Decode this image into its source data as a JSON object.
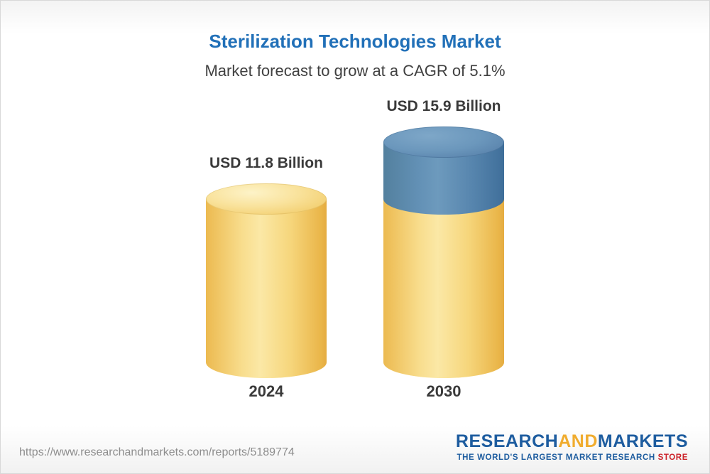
{
  "header": {
    "title": "Sterilization Technologies Market",
    "subtitle": "Market forecast to grow at a CAGR of 5.1%"
  },
  "chart_data": {
    "type": "bar",
    "variant": "3d-cylinder",
    "title": "Sterilization Technologies Market",
    "subtitle": "Market forecast to grow at a CAGR of 5.1%",
    "cagr_percent": 5.1,
    "categories": [
      "2024",
      "2030"
    ],
    "values": [
      11.8,
      15.9
    ],
    "unit": "USD Billion",
    "value_labels": [
      "USD 11.8 Billion",
      "USD 15.9 Billion"
    ],
    "ylim": [
      0,
      16
    ],
    "grid": false,
    "legend": false,
    "colors": {
      "base_segment": "#F6D77E",
      "growth_segment": "#5A88B0"
    },
    "notes": "2030 cylinder shows base value in yellow plus growth-over-2024 segment in blue on top"
  },
  "footer": {
    "url": "https://www.researchandmarkets.com/reports/5189774",
    "logo": {
      "word1": "RESEARCH",
      "word2": "AND",
      "word3": "MARKETS",
      "tagline_main": "THE WORLD'S LARGEST MARKET RESEARCH ",
      "tagline_accent": "STORE"
    }
  }
}
